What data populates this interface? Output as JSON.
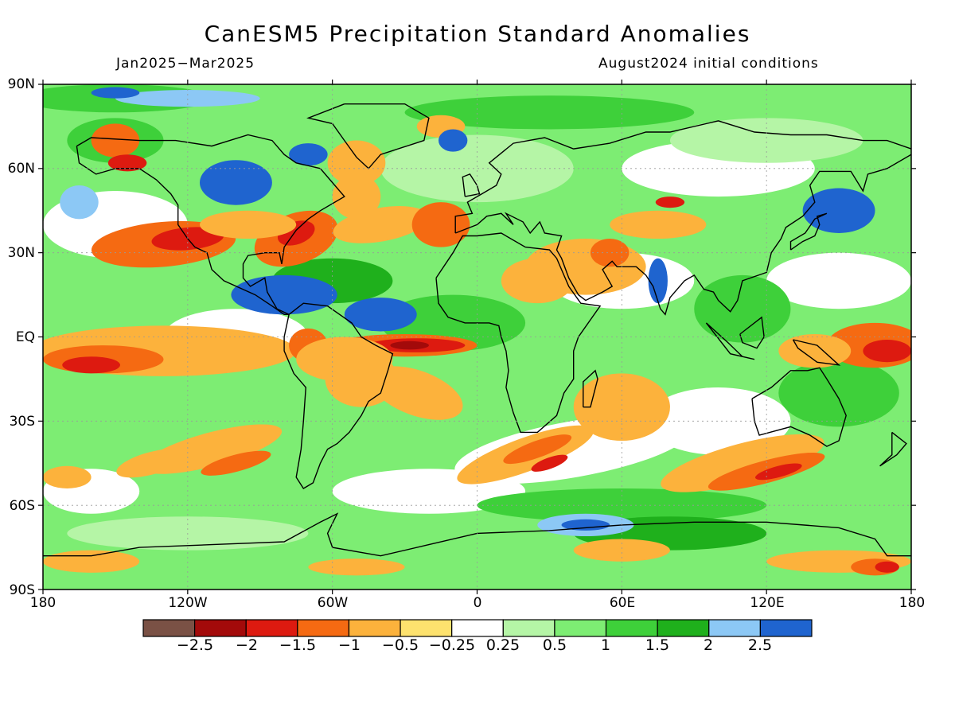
{
  "title": "CanESM5 Precipitation Standard Anomalies",
  "period": "Jan2025−Mar2025",
  "initial_conditions": "August2024 initial conditions",
  "lat_labels": [
    "90N",
    "60N",
    "30N",
    "EQ",
    "30S",
    "60S",
    "90S"
  ],
  "lon_labels": [
    "180",
    "120W",
    "60W",
    "0",
    "60E",
    "120E",
    "180"
  ],
  "colorbar": {
    "colors": [
      "#7a5145",
      "#a30a0a",
      "#dd1a10",
      "#f56a12",
      "#fcb23c",
      "#fde26e",
      "#ffffff",
      "#b5f5a6",
      "#7ded73",
      "#3ed03a",
      "#1fb01c",
      "#8cc8f5",
      "#1f64cf"
    ],
    "labels": [
      "−2.5",
      "−2",
      "−1.5",
      "−1",
      "−0.5",
      "−0.25",
      "0.25",
      "0.5",
      "1",
      "1.5",
      "2",
      "2.5"
    ]
  },
  "colors": {
    "land_outline": "#000000",
    "background_green": "#7ded73"
  }
}
